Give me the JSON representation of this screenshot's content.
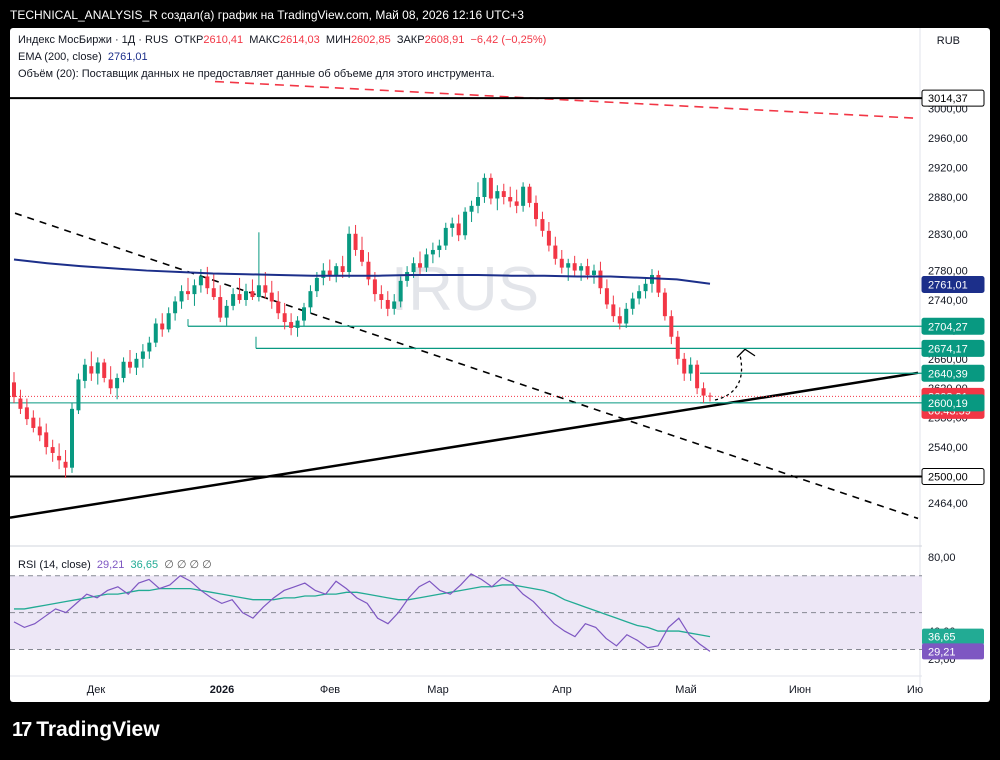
{
  "header": {
    "caption": "TECHNICAL_ANALYSIS_R создал(а) график на TradingView.com, Май 08, 2026 12:16 UTC+3"
  },
  "legend": {
    "symbol": "Индекс МосБиржи · 1Д · RUS",
    "open_label": "ОТКР",
    "open": "2610,41",
    "high_label": "МАКС",
    "high": "2614,03",
    "low_label": "МИН",
    "low": "2602,85",
    "close_label": "ЗАКР",
    "close": "2608,91",
    "change": "−6,42 (−0,25%)",
    "ema_label": "EMA (200, close)",
    "ema_value": "2761,01",
    "volume_note": "Объём (20): Поставщик данных не предоставляет данные об объеме для этого инструмента."
  },
  "currency": "RUB",
  "watermark": "IRUS",
  "rsi_legend": {
    "label": "RSI (14, close)",
    "rsi": "29,21",
    "ma": "36,65",
    "extras": "∅ ∅ ∅ ∅"
  },
  "brand": {
    "logo": "17",
    "name": "TradingView"
  },
  "colors": {
    "up": "#089981",
    "down": "#f23645",
    "ema": "#1c2f8a",
    "level": "#089981",
    "trend": "#000000",
    "rsi": "#7e57c2",
    "rsi_ma": "#22ab94",
    "rsi_band": "#ede7f6"
  },
  "chart_data": [
    {
      "type": "candlestick",
      "title": "Индекс МосБиржи · 1Д · RUS",
      "ylim": [
        2430,
        3035
      ],
      "y_ticks": [
        "3000,00",
        "2960,00",
        "2920,00",
        "2880,00",
        "2830,00",
        "2780,00",
        "2740,00",
        "2700,00",
        "2660,00",
        "2620,00",
        "2580,00",
        "2540,00",
        "2464,00"
      ],
      "x_ticks": [
        "Дек",
        "2026",
        "Фев",
        "Мар",
        "Апр",
        "Май",
        "Июн",
        "Ию"
      ],
      "ohlc": [
        [
          2628,
          2642,
          2600,
          2608
        ],
        [
          2606,
          2618,
          2585,
          2592
        ],
        [
          2594,
          2606,
          2570,
          2578
        ],
        [
          2580,
          2590,
          2560,
          2566
        ],
        [
          2568,
          2580,
          2548,
          2556
        ],
        [
          2560,
          2572,
          2530,
          2540
        ],
        [
          2540,
          2550,
          2520,
          2532
        ],
        [
          2528,
          2545,
          2510,
          2522
        ],
        [
          2520,
          2536,
          2498,
          2512
        ],
        [
          2512,
          2600,
          2505,
          2592
        ],
        [
          2590,
          2640,
          2585,
          2632
        ],
        [
          2630,
          2660,
          2620,
          2652
        ],
        [
          2650,
          2670,
          2630,
          2640
        ],
        [
          2640,
          2662,
          2625,
          2655
        ],
        [
          2655,
          2660,
          2628,
          2634
        ],
        [
          2632,
          2650,
          2612,
          2620
        ],
        [
          2620,
          2640,
          2605,
          2634
        ],
        [
          2634,
          2662,
          2628,
          2656
        ],
        [
          2656,
          2672,
          2640,
          2648
        ],
        [
          2648,
          2668,
          2638,
          2660
        ],
        [
          2660,
          2680,
          2648,
          2670
        ],
        [
          2670,
          2690,
          2660,
          2682
        ],
        [
          2682,
          2715,
          2676,
          2708
        ],
        [
          2708,
          2722,
          2690,
          2700
        ],
        [
          2700,
          2730,
          2696,
          2722
        ],
        [
          2722,
          2745,
          2712,
          2738
        ],
        [
          2738,
          2760,
          2728,
          2752
        ],
        [
          2752,
          2770,
          2740,
          2748
        ],
        [
          2748,
          2768,
          2732,
          2760
        ],
        [
          2760,
          2782,
          2750,
          2772
        ],
        [
          2772,
          2785,
          2748,
          2756
        ],
        [
          2756,
          2775,
          2740,
          2744
        ],
        [
          2744,
          2760,
          2710,
          2716
        ],
        [
          2716,
          2740,
          2705,
          2732
        ],
        [
          2732,
          2756,
          2726,
          2748
        ],
        [
          2748,
          2770,
          2735,
          2740
        ],
        [
          2740,
          2762,
          2732,
          2752
        ],
        [
          2752,
          2768,
          2740,
          2744
        ],
        [
          2744,
          2832,
          2738,
          2760
        ],
        [
          2760,
          2778,
          2742,
          2750
        ],
        [
          2750,
          2766,
          2728,
          2738
        ],
        [
          2738,
          2752,
          2714,
          2722
        ],
        [
          2722,
          2736,
          2700,
          2710
        ],
        [
          2710,
          2722,
          2692,
          2702
        ],
        [
          2702,
          2718,
          2690,
          2712
        ],
        [
          2712,
          2736,
          2704,
          2730
        ],
        [
          2730,
          2760,
          2722,
          2752
        ],
        [
          2752,
          2778,
          2744,
          2770
        ],
        [
          2770,
          2790,
          2760,
          2780
        ],
        [
          2780,
          2795,
          2766,
          2772
        ],
        [
          2772,
          2790,
          2764,
          2786
        ],
        [
          2786,
          2800,
          2770,
          2778
        ],
        [
          2778,
          2840,
          2770,
          2830
        ],
        [
          2830,
          2842,
          2800,
          2808
        ],
        [
          2808,
          2826,
          2786,
          2792
        ],
        [
          2792,
          2805,
          2760,
          2768
        ],
        [
          2768,
          2778,
          2738,
          2748
        ],
        [
          2748,
          2760,
          2728,
          2740
        ],
        [
          2740,
          2752,
          2718,
          2728
        ],
        [
          2728,
          2748,
          2720,
          2738
        ],
        [
          2738,
          2772,
          2730,
          2766
        ],
        [
          2766,
          2786,
          2758,
          2778
        ],
        [
          2778,
          2798,
          2770,
          2790
        ],
        [
          2790,
          2806,
          2775,
          2784
        ],
        [
          2784,
          2810,
          2778,
          2802
        ],
        [
          2802,
          2818,
          2790,
          2808
        ],
        [
          2808,
          2822,
          2798,
          2814
        ],
        [
          2814,
          2845,
          2808,
          2838
        ],
        [
          2838,
          2852,
          2826,
          2844
        ],
        [
          2844,
          2856,
          2820,
          2828
        ],
        [
          2828,
          2866,
          2822,
          2860
        ],
        [
          2860,
          2875,
          2846,
          2868
        ],
        [
          2868,
          2900,
          2858,
          2880
        ],
        [
          2880,
          2912,
          2872,
          2906
        ],
        [
          2906,
          2912,
          2870,
          2878
        ],
        [
          2878,
          2896,
          2862,
          2888
        ],
        [
          2888,
          2898,
          2870,
          2880
        ],
        [
          2880,
          2894,
          2866,
          2874
        ],
        [
          2874,
          2890,
          2858,
          2868
        ],
        [
          2868,
          2900,
          2860,
          2894
        ],
        [
          2894,
          2898,
          2866,
          2872
        ],
        [
          2872,
          2882,
          2840,
          2850
        ],
        [
          2850,
          2860,
          2826,
          2834
        ],
        [
          2834,
          2846,
          2806,
          2814
        ],
        [
          2814,
          2826,
          2788,
          2796
        ],
        [
          2796,
          2808,
          2776,
          2784
        ],
        [
          2784,
          2796,
          2766,
          2790
        ],
        [
          2790,
          2800,
          2772,
          2780
        ],
        [
          2780,
          2790,
          2766,
          2786
        ],
        [
          2786,
          2796,
          2768,
          2774
        ],
        [
          2774,
          2788,
          2762,
          2780
        ],
        [
          2780,
          2792,
          2748,
          2756
        ],
        [
          2756,
          2768,
          2728,
          2734
        ],
        [
          2734,
          2746,
          2710,
          2718
        ],
        [
          2718,
          2730,
          2700,
          2708
        ],
        [
          2708,
          2736,
          2702,
          2728
        ],
        [
          2728,
          2750,
          2720,
          2742
        ],
        [
          2742,
          2760,
          2734,
          2752
        ],
        [
          2752,
          2770,
          2742,
          2762
        ],
        [
          2762,
          2782,
          2750,
          2774
        ],
        [
          2774,
          2780,
          2744,
          2750
        ],
        [
          2750,
          2756,
          2712,
          2718
        ],
        [
          2718,
          2726,
          2680,
          2690
        ],
        [
          2690,
          2698,
          2652,
          2660
        ],
        [
          2660,
          2668,
          2630,
          2640
        ],
        [
          2640,
          2662,
          2630,
          2652
        ],
        [
          2652,
          2658,
          2612,
          2620
        ],
        [
          2620,
          2628,
          2600,
          2610
        ],
        [
          2610,
          2614,
          2602,
          2608.91
        ]
      ],
      "ema200": [
        2795,
        2790,
        2786,
        2783,
        2780,
        2778,
        2776,
        2775,
        2774,
        2773,
        2773,
        2773,
        2774,
        2774,
        2774,
        2773,
        2773,
        2772,
        2772,
        2770,
        2768,
        2762
      ],
      "levels": [
        {
          "value": 3014.37,
          "label": "3014,37",
          "color": "#000000",
          "style": "black"
        },
        {
          "value": 2761.01,
          "label": "2761,01",
          "color": "#1c2f8a",
          "style": "ema"
        },
        {
          "value": 2704.27,
          "label": "2704,27",
          "color": "#089981",
          "style": "green"
        },
        {
          "value": 2674.17,
          "label": "2674,17",
          "color": "#089981",
          "style": "green"
        },
        {
          "value": 2640.39,
          "label": "2640,39",
          "color": "#089981",
          "style": "green"
        },
        {
          "value": 2608.91,
          "label": "2608,91",
          "color": "#f23645",
          "style": "price",
          "countdown": "06:43:59"
        },
        {
          "value": 2600.19,
          "label": "2600,19",
          "color": "#089981",
          "style": "green"
        },
        {
          "value": 2500.0,
          "label": "2500,00",
          "color": "#000000",
          "style": "black"
        }
      ]
    },
    {
      "type": "line",
      "title": "RSI (14, close)",
      "ylim": [
        20,
        85
      ],
      "y_ticks": [
        "80,00",
        "40,00",
        "25,00"
      ],
      "band": [
        30,
        70
      ],
      "series": [
        {
          "name": "RSI",
          "values": [
            45,
            42,
            44,
            48,
            52,
            50,
            55,
            60,
            58,
            62,
            64,
            60,
            66,
            68,
            63,
            65,
            70,
            67,
            62,
            58,
            55,
            57,
            50,
            47,
            53,
            58,
            62,
            64,
            66,
            62,
            60,
            67,
            63,
            58,
            55,
            47,
            44,
            50,
            58,
            64,
            67,
            62,
            60,
            65,
            71,
            68,
            64,
            69,
            66,
            60,
            56,
            50,
            44,
            40,
            37,
            44,
            42,
            36,
            32,
            38,
            35,
            31,
            32,
            42,
            47,
            38,
            33,
            29
          ]
        },
        {
          "name": "MA",
          "values": [
            52,
            52,
            53,
            54,
            55,
            56,
            57,
            58,
            59,
            60,
            60,
            61,
            62,
            62,
            63,
            63,
            63,
            63,
            62,
            61,
            60,
            59,
            58,
            57,
            57,
            57,
            58,
            58,
            59,
            59,
            60,
            60,
            61,
            61,
            60,
            59,
            58,
            57,
            57,
            58,
            59,
            60,
            61,
            62,
            63,
            64,
            64,
            65,
            65,
            64,
            63,
            62,
            60,
            57,
            55,
            53,
            51,
            49,
            47,
            45,
            43,
            42,
            40,
            40,
            40,
            39,
            38,
            37
          ]
        }
      ]
    }
  ]
}
